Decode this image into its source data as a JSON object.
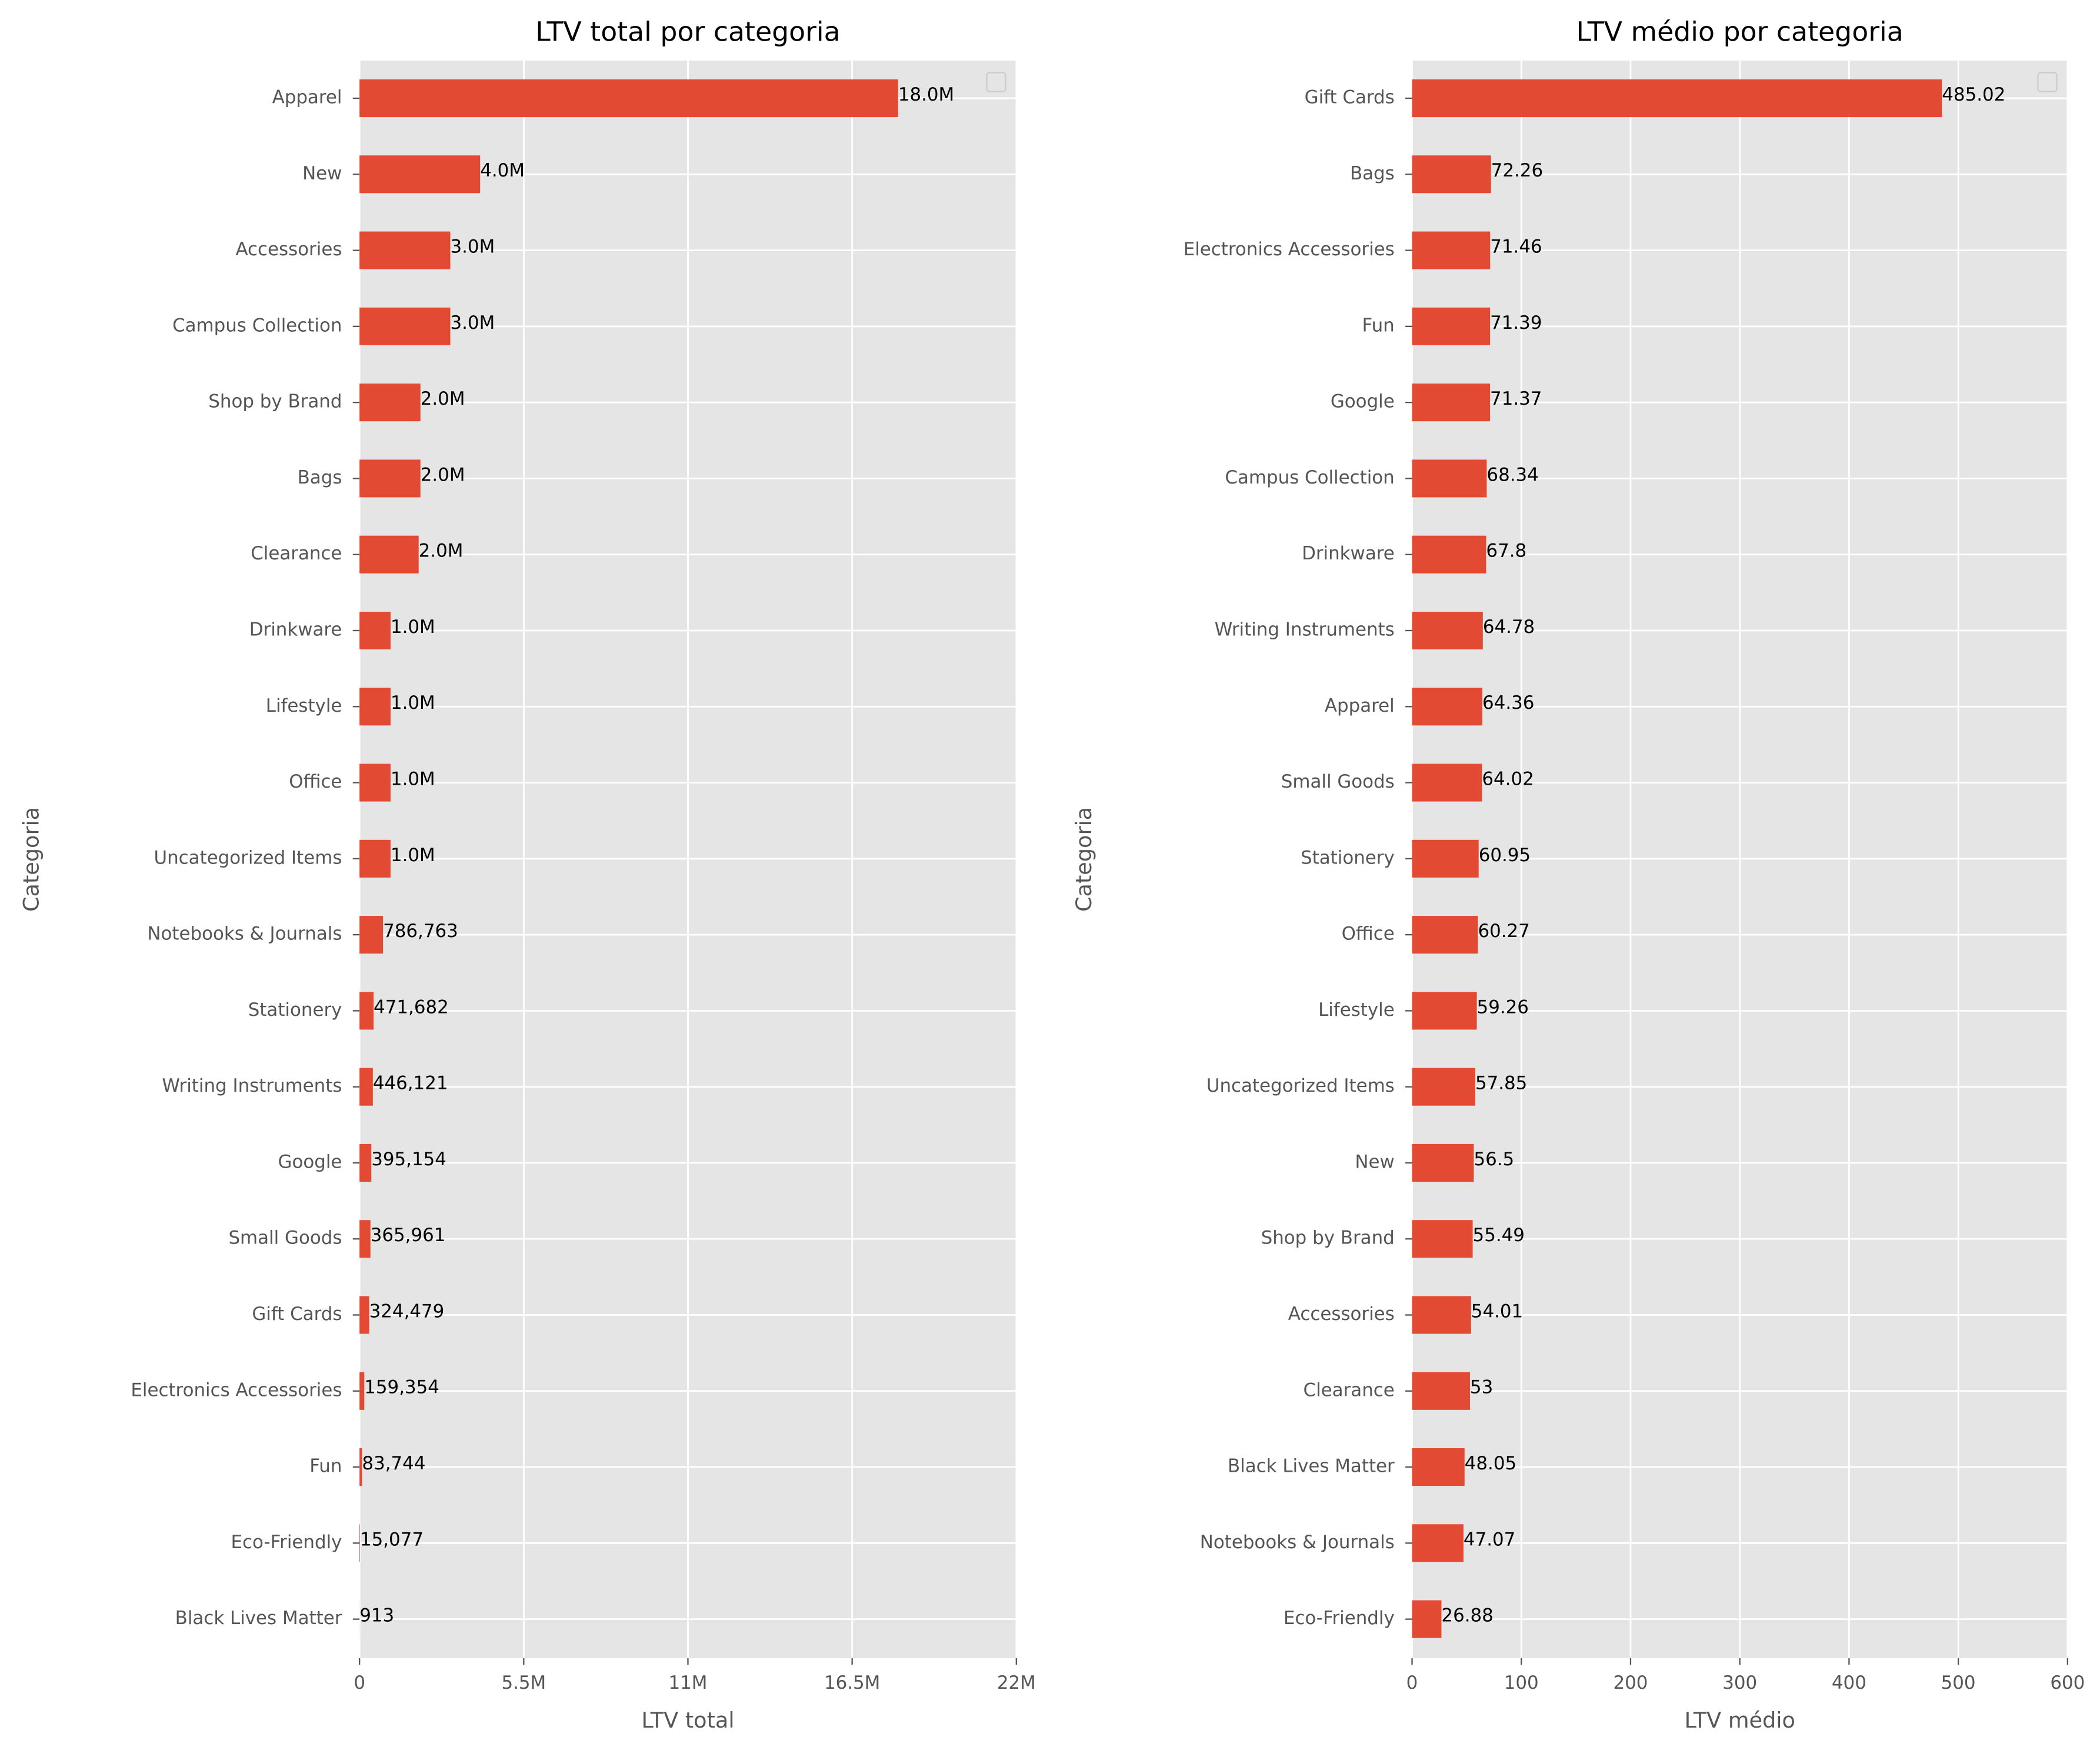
{
  "chart_data": [
    {
      "type": "bar",
      "orientation": "horizontal",
      "title": "LTV total por categoria",
      "xlabel": "LTV total",
      "ylabel": "Categoria",
      "categories": [
        "Apparel",
        "New",
        "Accessories",
        "Campus Collection",
        "Shop by Brand",
        "Bags",
        "Clearance",
        "Drinkware",
        "Lifestyle",
        "Office",
        "Uncategorized Items",
        "Notebooks & Journals",
        "Stationery",
        "Writing Instruments",
        "Google",
        "Small Goods",
        "Gift Cards",
        "Electronics Accessories",
        "Fun",
        "Eco-Friendly",
        "Black Lives Matter"
      ],
      "values": [
        18040000,
        4040000,
        3040000,
        3040000,
        2040000,
        2040000,
        1980000,
        1040000,
        1040000,
        1040000,
        1040000,
        786763,
        471682,
        446121,
        395154,
        365961,
        324479,
        159354,
        83744,
        15077,
        913
      ],
      "value_labels": [
        "18.0M",
        "4.0M",
        "3.0M",
        "3.0M",
        "2.0M",
        "2.0M",
        "2.0M",
        "1.0M",
        "1.0M",
        "1.0M",
        "1.0M",
        "786,763",
        "471,682",
        "446,121",
        "395,154",
        "365,961",
        "324,479",
        "159,354",
        "83,744",
        "15,077",
        "913"
      ],
      "color": "#E24A33",
      "xlim": [
        0,
        22000000
      ],
      "xticks": [
        0,
        {
          "value": 5500000,
          "label": "5.5M"
        },
        {
          "value": 11000000,
          "label": "11M"
        },
        {
          "value": 16500000,
          "label": "16.5M"
        },
        {
          "value": 22000000,
          "label": "22M"
        }
      ],
      "grid": true
    },
    {
      "type": "bar",
      "orientation": "horizontal",
      "title": "LTV médio por categoria",
      "xlabel": "LTV médio",
      "ylabel": "Categoria",
      "categories": [
        "Gift Cards",
        "Bags",
        "Electronics Accessories",
        "Fun",
        "Google",
        "Campus Collection",
        "Drinkware",
        "Writing Instruments",
        "Apparel",
        "Small Goods",
        "Stationery",
        "Office",
        "Lifestyle",
        "Uncategorized Items",
        "New",
        "Shop by Brand",
        "Accessories",
        "Clearance",
        "Black Lives Matter",
        "Notebooks & Journals",
        "Eco-Friendly"
      ],
      "values": [
        485.02,
        72.26,
        71.46,
        71.39,
        71.37,
        68.34,
        67.8,
        64.78,
        64.36,
        64.02,
        60.95,
        60.27,
        59.26,
        57.85,
        56.5,
        55.49,
        54.01,
        53,
        48.05,
        47.07,
        26.88
      ],
      "color": "#E24A33",
      "xlim": [
        0,
        600
      ],
      "xticks": [
        0,
        100,
        200,
        300,
        400,
        500,
        600
      ],
      "grid": true
    }
  ]
}
